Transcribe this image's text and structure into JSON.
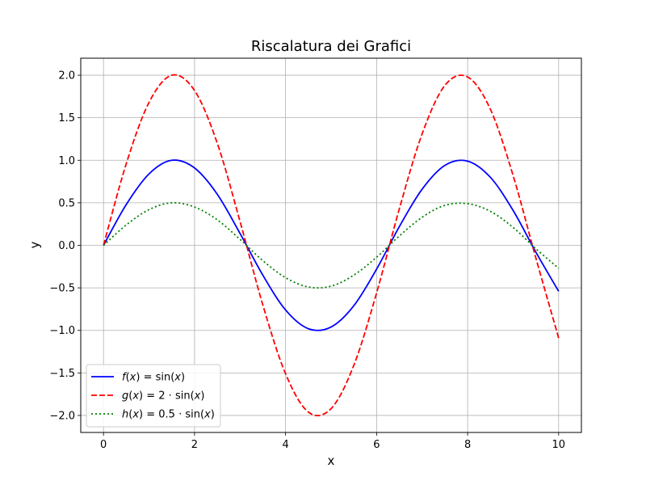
{
  "chart_data": {
    "type": "line",
    "title": "Riscalatura dei Grafici",
    "xlabel": "x",
    "ylabel": "y",
    "xlim": [
      -0.5,
      10.5
    ],
    "ylim": [
      -2.2,
      2.2
    ],
    "grid": true,
    "legend_position": "lower-left",
    "x_ticks": [
      0,
      2,
      4,
      6,
      8,
      10
    ],
    "x_tick_labels": [
      "0",
      "2",
      "4",
      "6",
      "8",
      "10"
    ],
    "y_ticks": [
      2.0,
      1.5,
      1.0,
      0.5,
      0.0,
      -0.5,
      -1.0,
      -1.5,
      -2.0
    ],
    "y_tick_labels": [
      "2.0",
      "1.5",
      "1.0",
      "0.5",
      "0.0",
      "−0.5",
      "−1.0",
      "−1.5",
      "−2.0"
    ],
    "x": [
      0,
      0.5,
      1,
      1.5,
      2,
      2.5,
      3,
      3.5,
      4,
      4.5,
      5,
      5.5,
      6,
      6.5,
      7,
      7.5,
      8,
      8.5,
      9,
      9.5,
      10
    ],
    "series": [
      {
        "name": "f(x) = sin(x)",
        "name_parts": [
          [
            "f",
            true
          ],
          [
            "(",
            false
          ],
          [
            "x",
            true
          ],
          [
            ") = sin(",
            false
          ],
          [
            "x",
            true
          ],
          [
            ")",
            false
          ]
        ],
        "color": "#0000ff",
        "line_style": "solid",
        "values": [
          0.0,
          0.48,
          0.84,
          1.0,
          0.91,
          0.6,
          0.14,
          -0.35,
          -0.76,
          -0.98,
          -0.96,
          -0.71,
          -0.28,
          0.22,
          0.66,
          0.94,
          0.99,
          0.8,
          0.41,
          -0.08,
          -0.54
        ]
      },
      {
        "name": "g(x) = 2 · sin(x)",
        "name_parts": [
          [
            "g",
            true
          ],
          [
            "(",
            false
          ],
          [
            "x",
            true
          ],
          [
            ") = 2 · sin(",
            false
          ],
          [
            "x",
            true
          ],
          [
            ")",
            false
          ]
        ],
        "color": "#ff0000",
        "line_style": "dashed",
        "values": [
          0.0,
          0.96,
          1.68,
          2.0,
          1.82,
          1.2,
          0.28,
          -0.7,
          -1.51,
          -1.96,
          -1.92,
          -1.41,
          -0.56,
          0.43,
          1.31,
          1.88,
          1.98,
          1.6,
          0.82,
          -0.15,
          -1.09
        ]
      },
      {
        "name": "h(x) = 0.5 · sin(x)",
        "name_parts": [
          [
            "h",
            true
          ],
          [
            "(",
            false
          ],
          [
            "x",
            true
          ],
          [
            ") = 0.5 · sin(",
            false
          ],
          [
            "x",
            true
          ],
          [
            ")",
            false
          ]
        ],
        "color": "#008000",
        "line_style": "dotted",
        "values": [
          0.0,
          0.24,
          0.42,
          0.5,
          0.45,
          0.3,
          0.07,
          -0.18,
          -0.38,
          -0.49,
          -0.48,
          -0.35,
          -0.14,
          0.11,
          0.33,
          0.47,
          0.49,
          0.4,
          0.21,
          -0.04,
          -0.27
        ]
      }
    ]
  }
}
